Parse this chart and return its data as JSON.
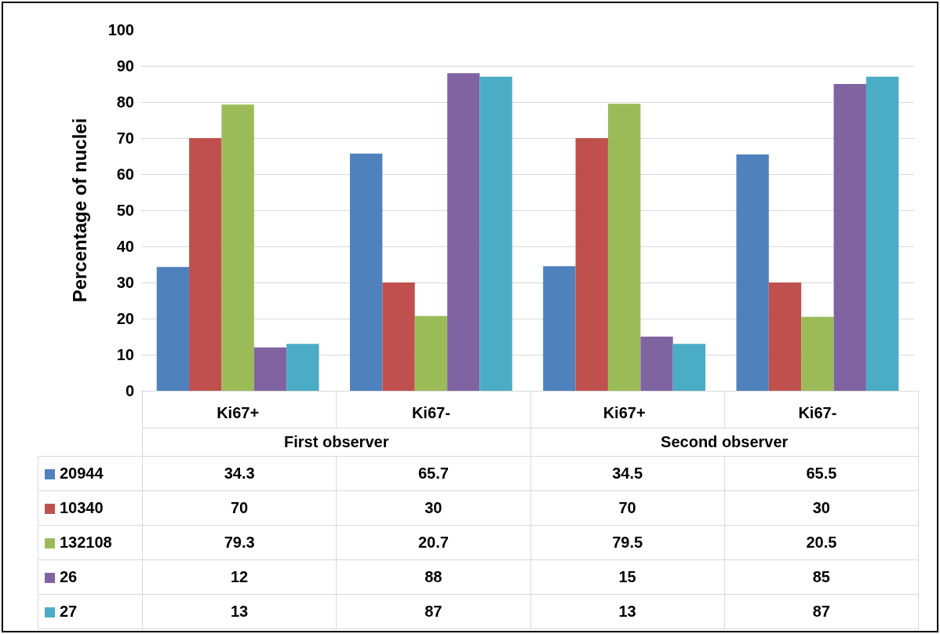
{
  "chart_data": {
    "type": "bar",
    "ylabel": "Percentage of nuclei",
    "categories": [
      "Ki67+",
      "Ki67-",
      "Ki67+",
      "Ki67-"
    ],
    "annotations": [
      "First observer",
      "Second observer"
    ],
    "series": [
      {
        "name": "20944",
        "color": "#4f81bd",
        "values": [
          34.3,
          65.7,
          34.5,
          65.5
        ]
      },
      {
        "name": "10340",
        "color": "#c0504d",
        "values": [
          70,
          30,
          70,
          30
        ]
      },
      {
        "name": "132108",
        "color": "#9bbb59",
        "values": [
          79.3,
          20.7,
          79.5,
          20.5
        ]
      },
      {
        "name": "26",
        "color": "#8064a2",
        "values": [
          12,
          88,
          15,
          85
        ]
      },
      {
        "name": "27",
        "color": "#4bacc6",
        "values": [
          13,
          87,
          13,
          87
        ]
      }
    ],
    "ylim": [
      0,
      100
    ],
    "yticks": [
      0,
      10,
      20,
      30,
      40,
      50,
      60,
      70,
      80,
      90,
      100
    ],
    "grid": "y",
    "data_labels": true,
    "legend": "bottom left"
  }
}
